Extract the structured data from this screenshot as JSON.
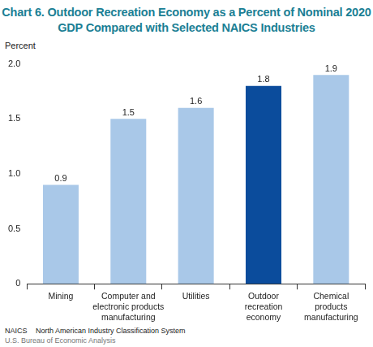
{
  "chart_data": {
    "type": "bar",
    "title": "Chart 6. Outdoor Recreation Economy as a Percent of Nominal 2020 GDP Compared with Selected NAICS Industries",
    "y_label": "Percent",
    "categories": [
      [
        "Mining"
      ],
      [
        "Computer and",
        "electronic products",
        "manufacturing"
      ],
      [
        "Utilities"
      ],
      [
        "Outdoor",
        "recreation",
        "economy"
      ],
      [
        "Chemical",
        "products",
        "manufacturing"
      ]
    ],
    "values": [
      0.9,
      1.5,
      1.6,
      1.8,
      1.9
    ],
    "colors": [
      "#a9c8e8",
      "#a9c8e8",
      "#a9c8e8",
      "#0b4c9c",
      "#a9c8e8"
    ],
    "ylim": [
      0,
      2
    ],
    "yticks": [
      0,
      0.5,
      {
        "value": 1,
        "label": "1.0"
      },
      1.5,
      {
        "value": 2,
        "label": "2.0"
      }
    ],
    "grid": false,
    "data_labels": true,
    "note": {
      "term": "NAICS",
      "definition": "North American Industry Classification System"
    },
    "source": "U.S. Bureau of Economic Analysis"
  }
}
